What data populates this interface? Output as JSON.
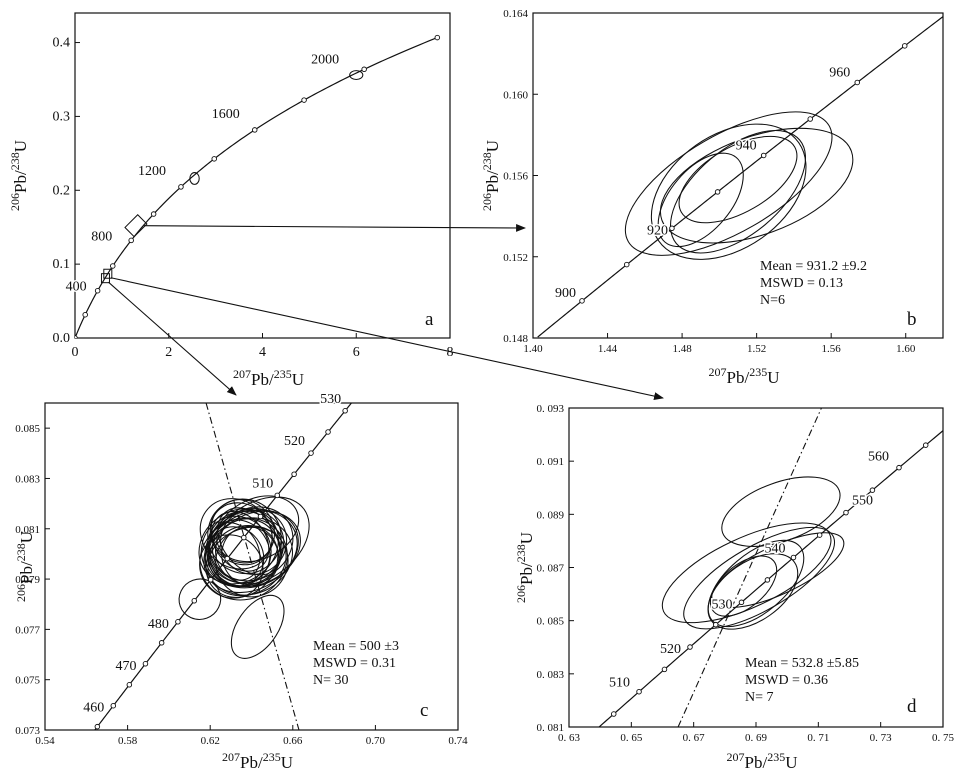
{
  "chart_data": [
    {
      "id": "a",
      "type": "line",
      "panel_label": "a",
      "xlabel": "²⁰⁷Pb/²³⁵U",
      "ylabel": "²⁰⁶Pb/²³⁸U",
      "xlim": [
        0,
        8
      ],
      "ylim": [
        0,
        0.44
      ],
      "xticks": [
        0,
        2,
        4,
        6,
        8
      ],
      "yticks": [
        0,
        0.1,
        0.2,
        0.3,
        0.4
      ],
      "xtick_labels": [
        "0",
        "2",
        "4",
        "6",
        "8"
      ],
      "ytick_labels": [
        "0.0",
        "0.1",
        "0.2",
        "0.3",
        "0.4"
      ],
      "concordia_age_range_ma": [
        0,
        2200
      ],
      "age_marks_ma": [
        0,
        200,
        400,
        600,
        800,
        1000,
        1200,
        1400,
        1600,
        1800,
        2000,
        2200
      ],
      "age_labels": [
        {
          "text": "400",
          "age": 400
        },
        {
          "text": "800",
          "age": 800
        },
        {
          "text": "1200",
          "age": 1200
        },
        {
          "text": "1600",
          "age": 1600
        },
        {
          "text": "2000",
          "age": 2000
        }
      ],
      "ellipses": [
        {
          "cx": 2.55,
          "cy": 0.216,
          "rx": 0.1,
          "ry": 0.008
        },
        {
          "cx": 6.0,
          "cy": 0.356,
          "rx": 0.14,
          "ry": 0.006
        }
      ],
      "zoom_boxes": [
        {
          "x": 1.3,
          "y": 0.152,
          "target": "b"
        },
        {
          "x": 0.65,
          "y": 0.081,
          "target": "c"
        },
        {
          "x": 0.7,
          "y": 0.087,
          "target": "d"
        }
      ]
    },
    {
      "id": "b",
      "type": "line",
      "panel_label": "b",
      "xlabel": "²⁰⁷Pb/²³⁵U",
      "ylabel": "²⁰⁶Pb/²³⁸U",
      "xlim": [
        1.4,
        1.62
      ],
      "ylim": [
        0.148,
        0.164
      ],
      "xticks": [
        1.4,
        1.44,
        1.48,
        1.52,
        1.56,
        1.6
      ],
      "yticks": [
        0.148,
        0.152,
        0.156,
        0.16,
        0.164
      ],
      "xtick_labels": [
        "1.40",
        "1.44",
        "1.48",
        "1.52",
        "1.56",
        "1.60"
      ],
      "ytick_labels": [
        "0.148",
        "0.152",
        "0.156",
        "0.160",
        "0.164"
      ],
      "concordia_age_range_ma": [
        890,
        990
      ],
      "age_marks_ma": [
        900,
        910,
        920,
        930,
        940,
        950,
        960,
        970
      ],
      "age_labels": [
        {
          "text": "900",
          "age": 900
        },
        {
          "text": "920",
          "age": 920
        },
        {
          "text": "940",
          "age": 940
        },
        {
          "text": "960",
          "age": 960
        }
      ],
      "ellipses": [
        {
          "cx": 1.505,
          "cy": 0.1556,
          "rx": 0.0622,
          "ry": 0.0024,
          "angle_deg": -30
        },
        {
          "cx": 1.505,
          "cy": 0.1552,
          "rx": 0.0459,
          "ry": 0.0028,
          "angle_deg": -35
        },
        {
          "cx": 1.51,
          "cy": 0.1552,
          "rx": 0.0432,
          "ry": 0.0021,
          "angle_deg": -40
        },
        {
          "cx": 1.52,
          "cy": 0.1555,
          "rx": 0.0541,
          "ry": 0.0024,
          "angle_deg": -20
        },
        {
          "cx": 1.49,
          "cy": 0.1548,
          "rx": 0.0297,
          "ry": 0.0015,
          "angle_deg": -50
        },
        {
          "cx": 1.51,
          "cy": 0.1558,
          "rx": 0.0351,
          "ry": 0.0016,
          "angle_deg": -30
        }
      ],
      "stats": {
        "mean": "Mean = 931.2 ±9.2",
        "mswd": "MSWD = 0.13",
        "n": "N=6"
      }
    },
    {
      "id": "c",
      "type": "line",
      "panel_label": "c",
      "xlabel": "²⁰⁷Pb/²³⁵U",
      "ylabel": "²⁰⁶Pb/²³⁸U",
      "xlim": [
        0.54,
        0.74
      ],
      "ylim": [
        0.073,
        0.086
      ],
      "xticks": [
        0.54,
        0.58,
        0.62,
        0.66,
        0.7,
        0.74
      ],
      "yticks": [
        0.073,
        0.075,
        0.077,
        0.079,
        0.081,
        0.083,
        0.085
      ],
      "xtick_labels": [
        "0.54",
        "0.58",
        "0.62",
        "0.66",
        "0.70",
        "0.74"
      ],
      "ytick_labels": [
        "0.073",
        "0.075",
        "0.077",
        "0.079",
        "0.081",
        "0.083",
        "0.085"
      ],
      "concordia_age_range_ma": [
        453,
        533
      ],
      "age_marks_ma": [
        455,
        460,
        465,
        470,
        475,
        480,
        485,
        490,
        495,
        500,
        505,
        510,
        515,
        520,
        525,
        530
      ],
      "age_labels": [
        {
          "text": "460",
          "age": 460
        },
        {
          "text": "470",
          "age": 470
        },
        {
          "text": "480",
          "age": 480
        },
        {
          "text": "510",
          "age": 510
        },
        {
          "text": "520",
          "age": 520
        },
        {
          "text": "530",
          "age": 530
        }
      ],
      "dashdot_line": [
        {
          "x": 0.618,
          "y": 0.086
        },
        {
          "x": 0.663,
          "y": 0.073
        }
      ],
      "ellipses": [
        {
          "cx": 0.643,
          "cy": 0.0771,
          "rx": 0.0173,
          "ry": 0.0008,
          "angle_deg": -55
        },
        {
          "cx": 0.615,
          "cy": 0.0782,
          "rx": 0.0101,
          "ry": 0.0008,
          "angle_deg": -20
        },
        {
          "cx": 0.6398,
          "cy": 0.0801,
          "rx": 0.0242,
          "ry": 0.0015,
          "angle_deg": -30
        },
        {
          "cx": 0.6435,
          "cy": 0.0805,
          "rx": 0.0269,
          "ry": 0.0015,
          "angle_deg": -35
        },
        {
          "cx": 0.6366,
          "cy": 0.0802,
          "rx": 0.0181,
          "ry": 0.0015,
          "angle_deg": -40
        },
        {
          "cx": 0.6362,
          "cy": 0.0798,
          "rx": 0.0215,
          "ry": 0.0016,
          "angle_deg": -25
        },
        {
          "cx": 0.6326,
          "cy": 0.0808,
          "rx": 0.0161,
          "ry": 0.0015,
          "angle_deg": -50
        },
        {
          "cx": 0.6406,
          "cy": 0.0804,
          "rx": 0.0202,
          "ry": 0.0014,
          "angle_deg": -30
        },
        {
          "cx": 0.6354,
          "cy": 0.0797,
          "rx": 0.0188,
          "ry": 0.0013,
          "angle_deg": -45
        },
        {
          "cx": 0.6342,
          "cy": 0.0801,
          "rx": 0.0141,
          "ry": 0.0013,
          "angle_deg": -35
        },
        {
          "cx": 0.6387,
          "cy": 0.0799,
          "rx": 0.0215,
          "ry": 0.0015,
          "angle_deg": -20
        },
        {
          "cx": 0.639,
          "cy": 0.0805,
          "rx": 0.0127,
          "ry": 0.0015,
          "angle_deg": -40
        },
        {
          "cx": 0.6326,
          "cy": 0.0801,
          "rx": 0.0168,
          "ry": 0.0014,
          "angle_deg": -30
        },
        {
          "cx": 0.6418,
          "cy": 0.0802,
          "rx": 0.0228,
          "ry": 0.0014,
          "angle_deg": -25
        },
        {
          "cx": 0.6358,
          "cy": 0.0809,
          "rx": 0.0148,
          "ry": 0.0013,
          "angle_deg": -45
        },
        {
          "cx": 0.6374,
          "cy": 0.0803,
          "rx": 0.0188,
          "ry": 0.0014,
          "angle_deg": -35
        },
        {
          "cx": 0.6322,
          "cy": 0.0799,
          "rx": 0.0134,
          "ry": 0.0012,
          "angle_deg": -30
        },
        {
          "cx": 0.6402,
          "cy": 0.0797,
          "rx": 0.0175,
          "ry": 0.0014,
          "angle_deg": -20
        },
        {
          "cx": 0.6346,
          "cy": 0.0805,
          "rx": 0.0121,
          "ry": 0.0013,
          "angle_deg": -40
        },
        {
          "cx": 0.6382,
          "cy": 0.0801,
          "rx": 0.0155,
          "ry": 0.0013,
          "angle_deg": -30
        },
        {
          "cx": 0.643,
          "cy": 0.081,
          "rx": 0.0208,
          "ry": 0.0012,
          "angle_deg": -25
        },
        {
          "cx": 0.6302,
          "cy": 0.0795,
          "rx": 0.0148,
          "ry": 0.0013,
          "angle_deg": -45
        },
        {
          "cx": 0.6366,
          "cy": 0.0807,
          "rx": 0.0175,
          "ry": 0.0015,
          "angle_deg": -35
        },
        {
          "cx": 0.6394,
          "cy": 0.0799,
          "rx": 0.0135,
          "ry": 0.0012,
          "angle_deg": -30
        },
        {
          "cx": 0.6338,
          "cy": 0.0803,
          "rx": 0.0202,
          "ry": 0.0014,
          "angle_deg": -35
        },
        {
          "cx": 0.641,
          "cy": 0.0805,
          "rx": 0.0161,
          "ry": 0.0013,
          "angle_deg": -40
        },
        {
          "cx": 0.6318,
          "cy": 0.0801,
          "rx": 0.0114,
          "ry": 0.0012,
          "angle_deg": -30
        },
        {
          "cx": 0.6378,
          "cy": 0.0797,
          "rx": 0.0195,
          "ry": 0.0013,
          "angle_deg": -25
        },
        {
          "cx": 0.635,
          "cy": 0.0808,
          "rx": 0.0141,
          "ry": 0.0013,
          "angle_deg": -45
        },
        {
          "cx": 0.6398,
          "cy": 0.0802,
          "rx": 0.0228,
          "ry": 0.0015,
          "angle_deg": -20
        }
      ],
      "stats": {
        "mean": "Mean = 500 ±3",
        "mswd": "MSWD = 0.31",
        "n": "N= 30"
      }
    },
    {
      "id": "d",
      "type": "line",
      "panel_label": "d",
      "xlabel": "²⁰⁷Pb/²³⁵U",
      "ylabel": "²⁰⁶Pb/²³⁸U",
      "xlim": [
        0.63,
        0.75
      ],
      "ylim": [
        0.081,
        0.093
      ],
      "xticks": [
        0.63,
        0.65,
        0.67,
        0.69,
        0.71,
        0.73,
        0.75
      ],
      "yticks": [
        0.081,
        0.083,
        0.085,
        0.087,
        0.089,
        0.091,
        0.093
      ],
      "xtick_labels": [
        "0. 63",
        "0. 65",
        "0. 67",
        "0. 69",
        "0. 71",
        "0. 73",
        "0. 75"
      ],
      "ytick_labels": [
        "0. 081",
        "0. 083",
        "0. 085",
        "0. 087",
        "0. 089",
        "0. 091",
        "0. 093"
      ],
      "concordia_age_range_ma": [
        500,
        572
      ],
      "age_marks_ma": [
        505,
        510,
        515,
        520,
        525,
        530,
        535,
        540,
        545,
        550,
        555,
        560,
        565
      ],
      "age_labels": [
        {
          "text": "510",
          "age": 510
        },
        {
          "text": "520",
          "age": 520
        },
        {
          "text": "530",
          "age": 530
        },
        {
          "text": "540",
          "age": 540
        },
        {
          "text": "550",
          "age": 550
        },
        {
          "text": "560",
          "age": 560
        }
      ],
      "dashdot_line": [
        {
          "x": 0.665,
          "y": 0.081
        },
        {
          "x": 0.711,
          "y": 0.093
        }
      ],
      "ellipses": [
        {
          "cx": 0.698,
          "cy": 0.0891,
          "rx": 0.0199,
          "ry": 0.0011,
          "angle_deg": -20
        },
        {
          "cx": 0.687,
          "cy": 0.0868,
          "rx": 0.0294,
          "ry": 0.0013,
          "angle_deg": -25
        },
        {
          "cx": 0.691,
          "cy": 0.0866,
          "rx": 0.0273,
          "ry": 0.0012,
          "angle_deg": -30
        },
        {
          "cx": 0.697,
          "cy": 0.0869,
          "rx": 0.0231,
          "ry": 0.0009,
          "angle_deg": -25
        },
        {
          "cx": 0.689,
          "cy": 0.0861,
          "rx": 0.0163,
          "ry": 0.0011,
          "angle_deg": -35
        },
        {
          "cx": 0.69,
          "cy": 0.0864,
          "rx": 0.0184,
          "ry": 0.0011,
          "angle_deg": -40
        },
        {
          "cx": 0.686,
          "cy": 0.0863,
          "rx": 0.0126,
          "ry": 0.0008,
          "angle_deg": -40
        }
      ],
      "stats": {
        "mean": "Mean = 532.8 ±5.85",
        "mswd": "MSWD = 0.36",
        "n": "N= 7"
      }
    }
  ]
}
